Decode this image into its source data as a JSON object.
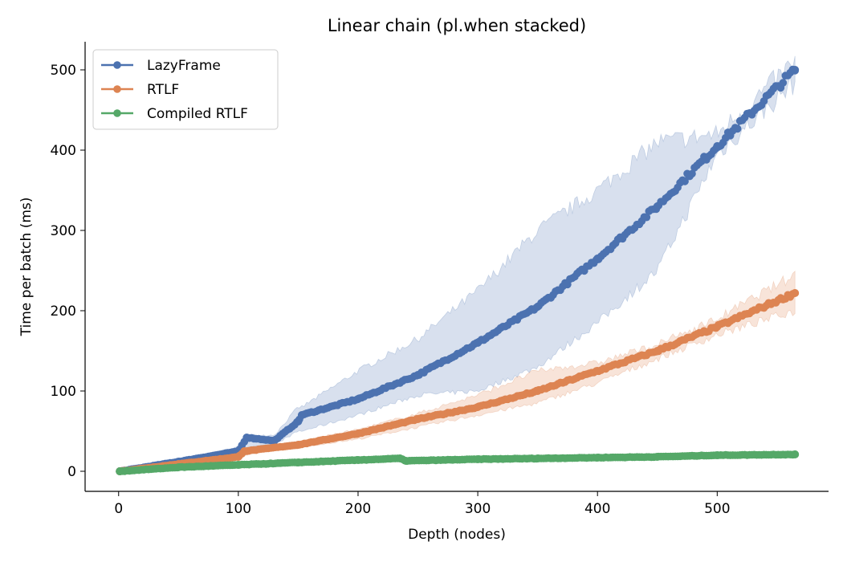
{
  "chart_data": {
    "type": "line",
    "title": "Linear chain (pl.when stacked)",
    "xlabel": "Depth (nodes)",
    "ylabel": "Time per batch (ms)",
    "xlim": [
      -28,
      593
    ],
    "ylim": [
      -25,
      535
    ],
    "xticks": [
      0,
      100,
      200,
      300,
      400,
      500
    ],
    "yticks": [
      0,
      100,
      200,
      300,
      400,
      500
    ],
    "grid": false,
    "legend_position": "top-left",
    "markers": true,
    "band": "shaded variability band around each series",
    "series": [
      {
        "name": "LazyFrame",
        "color": "#4c72b0",
        "x": [
          1,
          50,
          100,
          107,
          130,
          150,
          153,
          200,
          250,
          300,
          350,
          400,
          450,
          500,
          565
        ],
        "y": [
          0,
          12,
          25,
          42,
          38,
          62,
          70,
          90,
          120,
          160,
          205,
          265,
          330,
          405,
          500
        ],
        "band_low": [
          0,
          10,
          20,
          30,
          33,
          50,
          50,
          70,
          95,
          100,
          130,
          185,
          250,
          395,
          485
        ],
        "band_high": [
          0,
          14,
          30,
          45,
          45,
          80,
          80,
          125,
          165,
          225,
          300,
          350,
          410,
          420,
          510
        ]
      },
      {
        "name": "RTLF",
        "color": "#dd8452",
        "x": [
          1,
          50,
          100,
          105,
          150,
          200,
          250,
          300,
          350,
          400,
          450,
          500,
          565
        ],
        "y": [
          0,
          9,
          18,
          25,
          33,
          47,
          65,
          80,
          100,
          125,
          150,
          180,
          222
        ],
        "band_low": [
          0,
          8,
          16,
          20,
          30,
          40,
          55,
          70,
          85,
          110,
          140,
          170,
          200
        ],
        "band_high": [
          0,
          10,
          20,
          27,
          37,
          52,
          72,
          95,
          125,
          135,
          158,
          190,
          245
        ]
      },
      {
        "name": "Compiled RTLF",
        "color": "#55a868",
        "x": [
          1,
          50,
          100,
          150,
          200,
          235,
          240,
          300,
          350,
          400,
          450,
          500,
          565
        ],
        "y": [
          0,
          5,
          8,
          11,
          14,
          16,
          13,
          15,
          16,
          17,
          18,
          20,
          21
        ],
        "band_low": [
          0,
          4,
          7,
          9,
          12,
          14,
          12,
          14,
          15,
          16,
          17,
          18,
          19
        ],
        "band_high": [
          0,
          6,
          10,
          13,
          16,
          18,
          15,
          17,
          18,
          19,
          21,
          23,
          25
        ]
      }
    ]
  }
}
